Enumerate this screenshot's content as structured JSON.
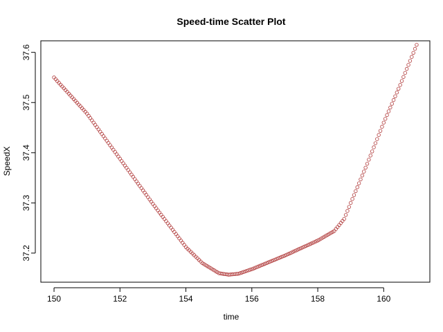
{
  "chart_data": {
    "type": "scatter",
    "title": "Speed-time Scatter Plot",
    "xlabel": "time",
    "ylabel": "SpeedX",
    "xlim": [
      149.6,
      161.4
    ],
    "ylim": [
      37.142,
      37.623
    ],
    "x_ticks": [
      150,
      152,
      154,
      156,
      158,
      160
    ],
    "y_ticks": [
      37.2,
      37.3,
      37.4,
      37.5,
      37.6
    ],
    "grid": false,
    "legend": "none",
    "marker": "open-circle",
    "colors": {
      "points": "#b03a3a",
      "axis": "#000000",
      "background": "#ffffff"
    },
    "x_start": 150.0,
    "x_step": 0.05,
    "keypoints": [
      [
        150.0,
        37.55
      ],
      [
        151.0,
        37.478
      ],
      [
        152.0,
        37.388
      ],
      [
        153.0,
        37.298
      ],
      [
        154.0,
        37.212
      ],
      [
        154.5,
        37.18
      ],
      [
        155.0,
        37.16
      ],
      [
        155.3,
        37.157
      ],
      [
        155.6,
        37.159
      ],
      [
        156.0,
        37.168
      ],
      [
        157.0,
        37.195
      ],
      [
        158.0,
        37.225
      ],
      [
        158.5,
        37.244
      ],
      [
        158.8,
        37.268
      ],
      [
        159.0,
        37.3
      ],
      [
        159.5,
        37.378
      ],
      [
        160.0,
        37.46
      ],
      [
        160.5,
        37.535
      ],
      [
        161.0,
        37.615
      ]
    ]
  }
}
